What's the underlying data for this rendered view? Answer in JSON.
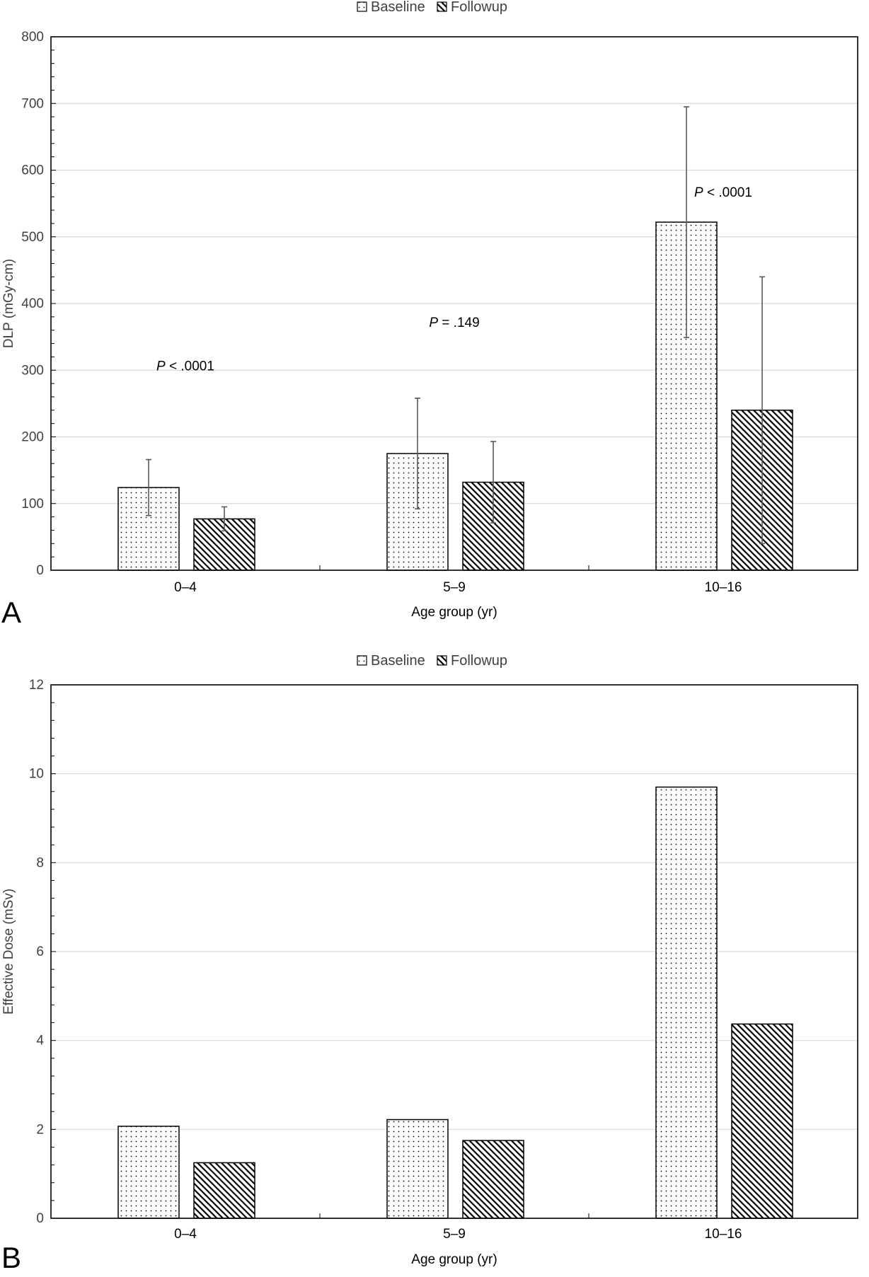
{
  "colors": {
    "frame": "#000000",
    "grid": "#d9d9d9",
    "bar_edge": "#000000",
    "error_bar": "#595959"
  },
  "legend": {
    "baseline_label": "Baseline",
    "followup_label": "Followup"
  },
  "chart_data": [
    {
      "panel": "A",
      "type": "bar",
      "xlabel": "Age group (yr)",
      "ylabel": "DLP (mGy-cm)",
      "ylim": [
        0,
        800
      ],
      "yticks": [
        0,
        100,
        200,
        300,
        400,
        500,
        600,
        700,
        800
      ],
      "categories": [
        "0–4",
        "5–9",
        "10–16"
      ],
      "series": [
        {
          "name": "Baseline",
          "pattern": "dots",
          "values": [
            124,
            175,
            522
          ],
          "error": [
            42,
            83,
            173
          ]
        },
        {
          "name": "Followup",
          "pattern": "hatch",
          "values": [
            77,
            132,
            240
          ],
          "error": [
            18,
            61,
            200
          ]
        }
      ],
      "annotations": [
        {
          "italic": "P",
          "rest": " < .0001",
          "category": 0,
          "y": 300
        },
        {
          "italic": "P",
          "rest": " = .149",
          "category": 1,
          "y": 365
        },
        {
          "italic": "P",
          "rest": " < .0001",
          "category": 2,
          "y": 560
        }
      ]
    },
    {
      "panel": "B",
      "type": "bar",
      "xlabel": "Age group (yr)",
      "ylabel": "Effective Dose (mSv)",
      "ylim": [
        0,
        12
      ],
      "yticks": [
        0,
        2,
        4,
        6,
        8,
        10,
        12
      ],
      "categories": [
        "0–4",
        "5–9",
        "10–16"
      ],
      "series": [
        {
          "name": "Baseline",
          "pattern": "dots",
          "values": [
            2.07,
            2.22,
            9.7
          ]
        },
        {
          "name": "Followup",
          "pattern": "hatch",
          "values": [
            1.25,
            1.75,
            4.37
          ]
        }
      ],
      "annotations": []
    }
  ]
}
